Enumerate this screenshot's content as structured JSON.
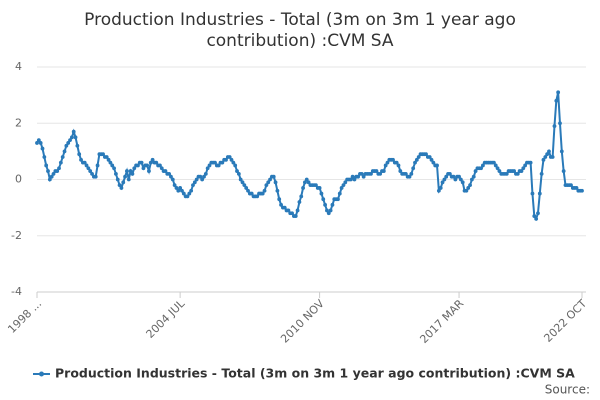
{
  "chart_data": {
    "type": "line",
    "title": [
      "Production Industries - Total (3m on 3m 1 year ago",
      "contribution) :CVM SA"
    ],
    "source": "Source:",
    "categories": [
      "1998 ...",
      null,
      null,
      null,
      null,
      null,
      null,
      null,
      null,
      null,
      null,
      null,
      null,
      null,
      null,
      null,
      null,
      null,
      null,
      null,
      null,
      null,
      null,
      null,
      null,
      null,
      null,
      null,
      null,
      null,
      null,
      null,
      null,
      null,
      null,
      null,
      null,
      null,
      null,
      null,
      null,
      null,
      null,
      null,
      null,
      null,
      null,
      null,
      null,
      null,
      null,
      null,
      null,
      null,
      null,
      null,
      null,
      null,
      null,
      null,
      null,
      null,
      null,
      null,
      null,
      null,
      null,
      null,
      null,
      null,
      null,
      null,
      null,
      null,
      null,
      null,
      null,
      null,
      "2004 JUL",
      null,
      null,
      null,
      null,
      null,
      null,
      null,
      null,
      null,
      null,
      null,
      null,
      null,
      null,
      null,
      null,
      null,
      null,
      null,
      null,
      null,
      null,
      null,
      null,
      null,
      null,
      null,
      null,
      null,
      null,
      null,
      null,
      null,
      null,
      null,
      null,
      null,
      null,
      null,
      null,
      null,
      null,
      null,
      null,
      null,
      null,
      null,
      null,
      null,
      null,
      null,
      null,
      null,
      null,
      null,
      null,
      null,
      null,
      null,
      null,
      null,
      null,
      null,
      null,
      null,
      null,
      null,
      null,
      null,
      null,
      null,
      null,
      null,
      null,
      null,
      "2010 NOV",
      null,
      null,
      null,
      null,
      null,
      null,
      null,
      null,
      null,
      null,
      null,
      null,
      null,
      null,
      null,
      null,
      null,
      null,
      null,
      null,
      null,
      null,
      null,
      null,
      null,
      null,
      null,
      null,
      null,
      null,
      null,
      null,
      null,
      null,
      null,
      null,
      null,
      null,
      null,
      null,
      null,
      null,
      null,
      null,
      null,
      null,
      null,
      null,
      null,
      null,
      null,
      null,
      null,
      null,
      null,
      null,
      null,
      null,
      null,
      null,
      null,
      null,
      null,
      null,
      null,
      null,
      null,
      null,
      null,
      null,
      null,
      null,
      null,
      null,
      null,
      "2017 MAR",
      null,
      null,
      null,
      null,
      null,
      null,
      null,
      null,
      null,
      null,
      null,
      null,
      null,
      null,
      null,
      null,
      null,
      null,
      null,
      null,
      null,
      null,
      null,
      null,
      null,
      null,
      null,
      null,
      null,
      null,
      null,
      null,
      null,
      null,
      null,
      null,
      null,
      null,
      null,
      null,
      null,
      null,
      null,
      null,
      null,
      null,
      null,
      null,
      null,
      null,
      null,
      null,
      null,
      null,
      null,
      null,
      null,
      null,
      null,
      null,
      null,
      null,
      null,
      null,
      null,
      null,
      "2022 OCT"
    ],
    "series": [
      {
        "name": "Production Industries - Total (3m on 3m 1 year ago contribution) :CVM SA",
        "color": "#2a7ab9",
        "values": [
          1.3,
          1.4,
          1.3,
          1.1,
          0.8,
          0.5,
          0.3,
          0.0,
          0.1,
          0.2,
          0.3,
          0.3,
          0.4,
          0.6,
          0.8,
          1.0,
          1.2,
          1.3,
          1.4,
          1.5,
          1.7,
          1.5,
          1.2,
          0.9,
          0.7,
          0.6,
          0.6,
          0.5,
          0.4,
          0.3,
          0.2,
          0.1,
          0.1,
          0.5,
          0.9,
          0.9,
          0.9,
          0.8,
          0.8,
          0.7,
          0.6,
          0.5,
          0.4,
          0.2,
          0.0,
          -0.2,
          -0.3,
          -0.1,
          0.1,
          0.3,
          0.0,
          0.3,
          0.2,
          0.4,
          0.5,
          0.5,
          0.6,
          0.6,
          0.4,
          0.5,
          0.5,
          0.3,
          0.6,
          0.7,
          0.6,
          0.6,
          0.5,
          0.5,
          0.4,
          0.3,
          0.3,
          0.2,
          0.2,
          0.1,
          0.0,
          -0.2,
          -0.3,
          -0.4,
          -0.3,
          -0.4,
          -0.5,
          -0.6,
          -0.6,
          -0.5,
          -0.4,
          -0.2,
          -0.1,
          0.0,
          0.1,
          0.1,
          0.0,
          0.1,
          0.2,
          0.4,
          0.5,
          0.6,
          0.6,
          0.6,
          0.5,
          0.5,
          0.6,
          0.6,
          0.7,
          0.7,
          0.8,
          0.8,
          0.7,
          0.6,
          0.5,
          0.3,
          0.2,
          0.0,
          -0.1,
          -0.2,
          -0.3,
          -0.4,
          -0.5,
          -0.5,
          -0.6,
          -0.6,
          -0.6,
          -0.5,
          -0.5,
          -0.5,
          -0.4,
          -0.2,
          -0.1,
          0.0,
          0.1,
          0.1,
          -0.1,
          -0.4,
          -0.7,
          -0.9,
          -1.0,
          -1.0,
          -1.1,
          -1.1,
          -1.2,
          -1.2,
          -1.3,
          -1.3,
          -1.1,
          -0.8,
          -0.6,
          -0.3,
          -0.1,
          0.0,
          -0.1,
          -0.2,
          -0.2,
          -0.2,
          -0.2,
          -0.3,
          -0.3,
          -0.5,
          -0.7,
          -0.9,
          -1.1,
          -1.2,
          -1.1,
          -0.9,
          -0.7,
          -0.7,
          -0.7,
          -0.5,
          -0.3,
          -0.2,
          -0.1,
          0.0,
          0.0,
          0.0,
          0.1,
          0.0,
          0.1,
          0.1,
          0.2,
          0.2,
          0.1,
          0.2,
          0.2,
          0.2,
          0.2,
          0.3,
          0.3,
          0.3,
          0.2,
          0.2,
          0.3,
          0.3,
          0.5,
          0.6,
          0.7,
          0.7,
          0.7,
          0.6,
          0.6,
          0.5,
          0.3,
          0.2,
          0.2,
          0.2,
          0.1,
          0.1,
          0.2,
          0.4,
          0.6,
          0.7,
          0.8,
          0.9,
          0.9,
          0.9,
          0.9,
          0.8,
          0.8,
          0.7,
          0.6,
          0.5,
          0.5,
          -0.4,
          -0.3,
          -0.1,
          0.0,
          0.1,
          0.2,
          0.2,
          0.1,
          0.1,
          0.0,
          0.1,
          0.1,
          0.0,
          -0.1,
          -0.4,
          -0.4,
          -0.3,
          -0.2,
          0.0,
          0.1,
          0.3,
          0.4,
          0.4,
          0.4,
          0.5,
          0.6,
          0.6,
          0.6,
          0.6,
          0.6,
          0.6,
          0.5,
          0.4,
          0.3,
          0.2,
          0.2,
          0.2,
          0.2,
          0.3,
          0.3,
          0.3,
          0.3,
          0.2,
          0.2,
          0.3,
          0.3,
          0.4,
          0.5,
          0.6,
          0.6,
          0.6,
          -0.5,
          -1.3,
          -1.4,
          -1.2,
          -0.5,
          0.2,
          0.7,
          0.8,
          0.9,
          1.0,
          0.8,
          0.8,
          1.9,
          2.8,
          3.1,
          2.0,
          1.0,
          0.3,
          -0.2,
          -0.2,
          -0.2,
          -0.2,
          -0.3,
          -0.3,
          -0.3,
          -0.4,
          -0.4,
          -0.4
        ]
      }
    ],
    "ylim": [
      -4,
      4
    ],
    "yticks": [
      -4,
      -2,
      0,
      2,
      4
    ],
    "grid": true
  }
}
